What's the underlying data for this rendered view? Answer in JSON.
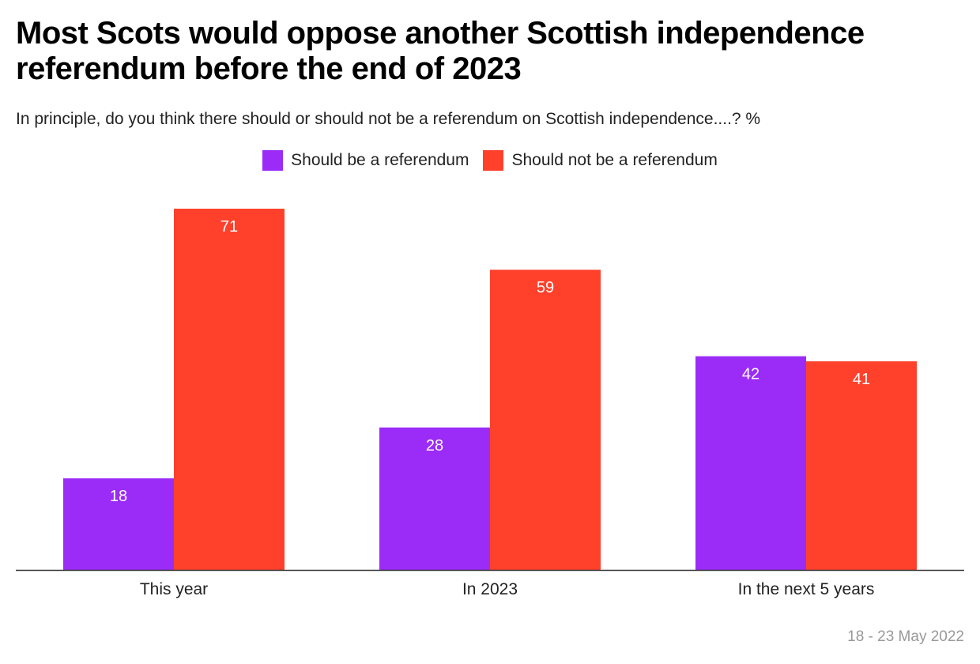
{
  "title": "Most Scots would oppose another Scottish independence referendum before the end of 2023",
  "subtitle": "In principle, do you think there should or should not be a referendum on Scottish independence....? %",
  "source_date": "18 - 23 May 2022",
  "colors": {
    "should": "#9B2CF7",
    "should_not": "#FF412C"
  },
  "chart_data": {
    "type": "bar",
    "title": "Most Scots would oppose another Scottish independence referendum before the end of 2023",
    "subtitle": "In principle, do you think there should or should not be a referendum on Scottish independence....? %",
    "categories": [
      "This year",
      "In 2023",
      "In the next 5 years"
    ],
    "series": [
      {
        "name": "Should be a referendum",
        "values": [
          18,
          28,
          42
        ],
        "color": "#9B2CF7"
      },
      {
        "name": "Should not be a referendum",
        "values": [
          71,
          59,
          41
        ],
        "color": "#FF412C"
      }
    ],
    "ylim": [
      0,
      71
    ],
    "legend_position": "top-center",
    "grid": false,
    "xlabel": "",
    "ylabel": ""
  }
}
